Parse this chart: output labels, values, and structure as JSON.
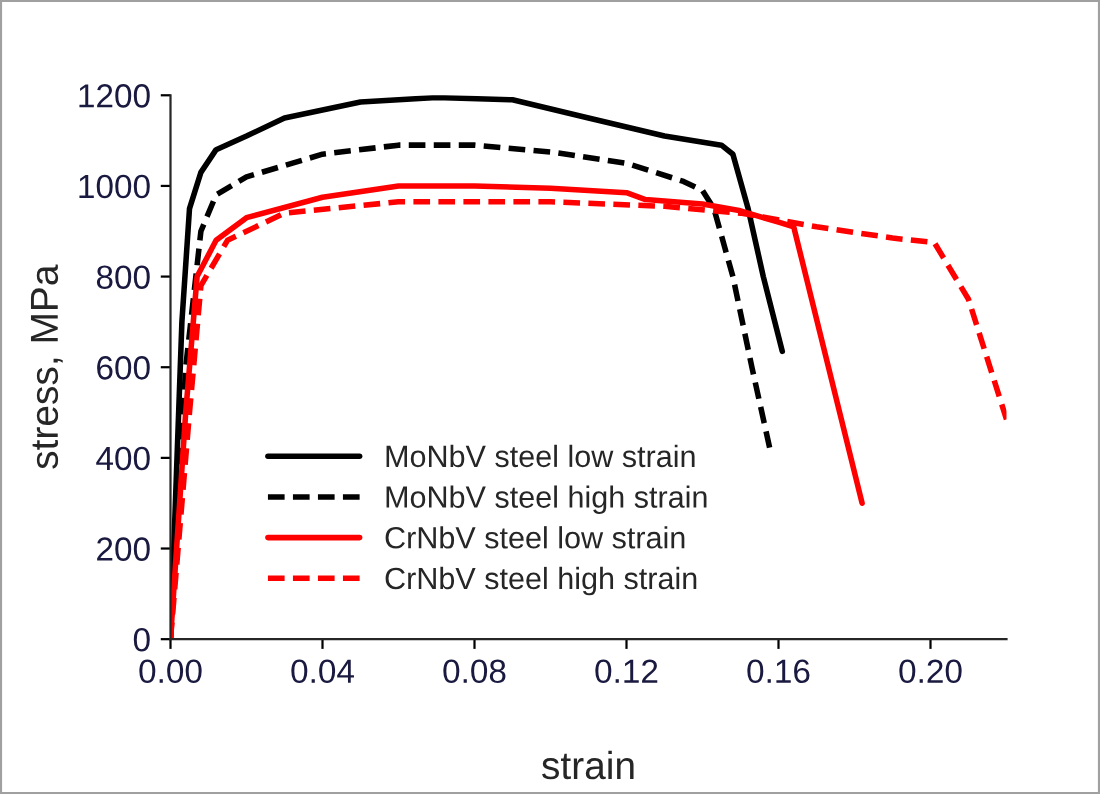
{
  "chart_data": {
    "type": "line",
    "xlabel": "strain",
    "ylabel": "stress, MPa",
    "xlim": [
      0,
      0.22
    ],
    "ylim": [
      0,
      1200
    ],
    "xticks": [
      {
        "value": 0,
        "label": "0.00"
      },
      {
        "value": 0.04,
        "label": "0.04"
      },
      {
        "value": 0.08,
        "label": "0.08"
      },
      {
        "value": 0.12,
        "label": "0.12"
      },
      {
        "value": 0.16,
        "label": "0.16"
      },
      {
        "value": 0.2,
        "label": "0.20"
      }
    ],
    "yticks": [
      0,
      200,
      400,
      600,
      800,
      1000,
      1200
    ],
    "grid": false,
    "legend": "bottom",
    "marker": "none",
    "series": [
      {
        "name": "MoNbV steel low strain",
        "color": "#000000",
        "line_style": "solid",
        "x": [
          0,
          0.003,
          0.005,
          0.008,
          0.012,
          0.02,
          0.03,
          0.05,
          0.07,
          0.09,
          0.11,
          0.13,
          0.145,
          0.148,
          0.152,
          0.156,
          0.161
        ],
        "values": [
          0,
          700,
          950,
          1030,
          1080,
          1110,
          1150,
          1185,
          1195,
          1190,
          1150,
          1110,
          1090,
          1070,
          950,
          800,
          635
        ]
      },
      {
        "name": "MoNbV steel high strain",
        "color": "#000000",
        "line_style": "dashed",
        "x": [
          0,
          0.004,
          0.008,
          0.012,
          0.02,
          0.04,
          0.06,
          0.08,
          0.1,
          0.12,
          0.135,
          0.14,
          0.143,
          0.148,
          0.153,
          0.158
        ],
        "values": [
          0,
          600,
          900,
          980,
          1020,
          1070,
          1090,
          1090,
          1075,
          1050,
          1010,
          990,
          950,
          800,
          600,
          410
        ]
      },
      {
        "name": "CrNbV steel low strain",
        "color": "#ff0000",
        "line_style": "solid",
        "x": [
          0,
          0.004,
          0.007,
          0.012,
          0.02,
          0.04,
          0.06,
          0.08,
          0.1,
          0.12,
          0.125,
          0.14,
          0.15,
          0.16,
          0.164,
          0.182
        ],
        "values": [
          0,
          500,
          800,
          880,
          930,
          975,
          1000,
          1000,
          995,
          985,
          970,
          960,
          945,
          920,
          910,
          300
        ]
      },
      {
        "name": "CrNbV steel high strain",
        "color": "#ff0000",
        "line_style": "dashed",
        "x": [
          0,
          0.005,
          0.008,
          0.015,
          0.03,
          0.06,
          0.1,
          0.13,
          0.15,
          0.17,
          0.19,
          0.201,
          0.21,
          0.22
        ],
        "values": [
          0,
          500,
          780,
          880,
          940,
          965,
          965,
          955,
          940,
          910,
          885,
          875,
          750,
          485
        ]
      }
    ]
  }
}
